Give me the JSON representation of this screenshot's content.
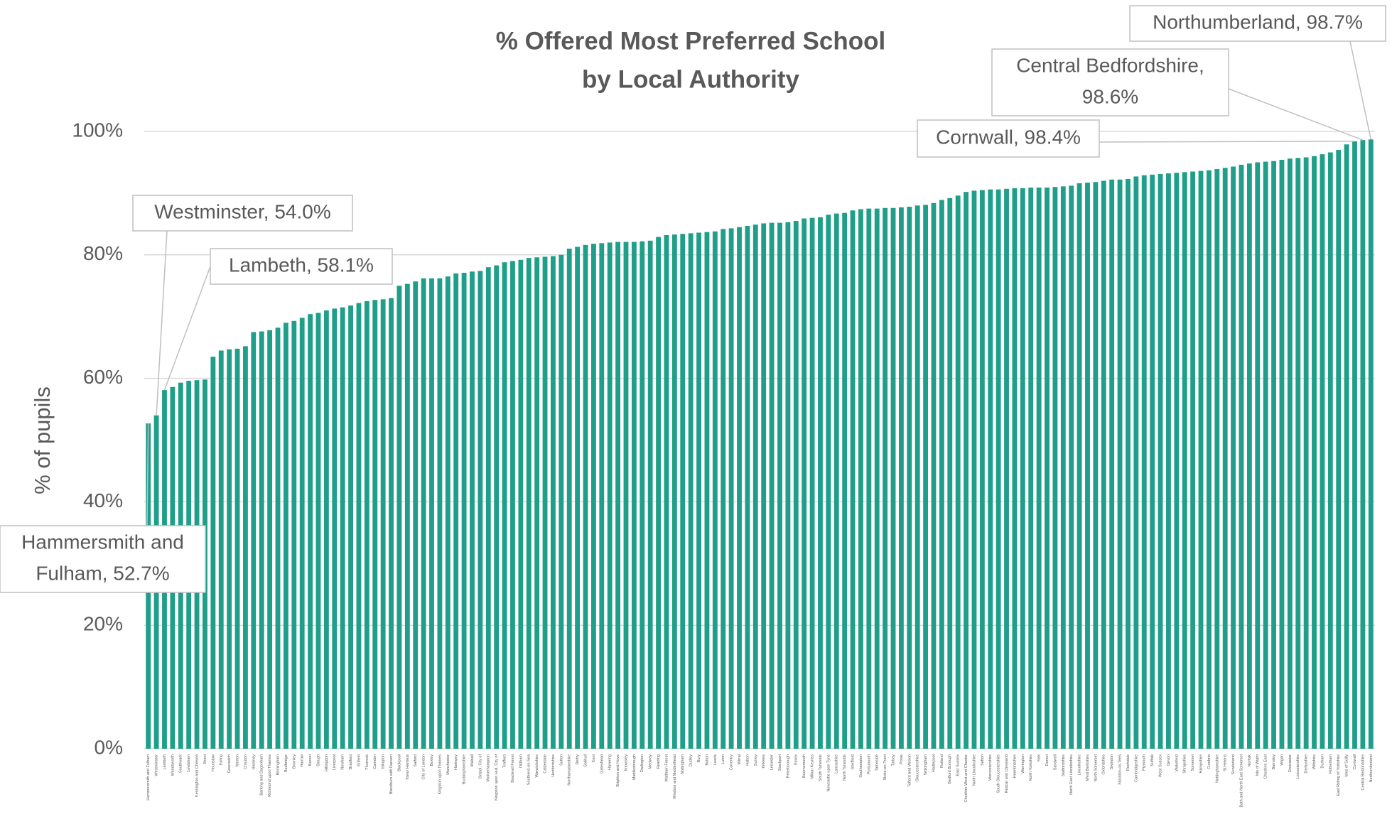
{
  "chart_data": {
    "type": "bar",
    "title": [
      "% Offered Most Preferred School",
      "by Local Authority"
    ],
    "y_label": "% of pupils",
    "color": "#1f9e89",
    "grid": true,
    "ylim": [
      0,
      100
    ],
    "yticks": [
      {
        "value": 0,
        "label": "0%"
      },
      {
        "value": 20,
        "label": "20%"
      },
      {
        "value": 40,
        "label": "40%"
      },
      {
        "value": 60,
        "label": "60%"
      },
      {
        "value": 80,
        "label": "80%"
      },
      {
        "value": 100,
        "label": "100%"
      }
    ],
    "categories": [
      "Hammersmith and Fulham",
      "Westminster",
      "Lambeth",
      "Wandsworth",
      "Southwark",
      "Lewisham",
      "Kensington and Chelsea",
      "Brent",
      "Hounslow",
      "Ealing",
      "Greenwich",
      "Merton",
      "Croydon",
      "Hackney",
      "Barking and Dagenham",
      "Richmond upon Thames",
      "Birmingham",
      "Redbridge",
      "Bromley",
      "Harrow",
      "Barnet",
      "Slough",
      "Hillingdon",
      "Liverpool",
      "Newham",
      "Bradford",
      "Enfield",
      "Thurrock",
      "Camden",
      "Islington",
      "Blackburn with Darwen",
      "Blackpool",
      "Tower Hamlets",
      "Salford",
      "City of London",
      "Bexley",
      "Kingston upon Thames",
      "Manchester",
      "Haringey",
      "Buckinghamshire",
      "Walsall",
      "Bristol, City of",
      "Wolverhampton",
      "Kingston upon Hull, City of",
      "Trafford",
      "Bracknell Forest",
      "Oldham",
      "Southend-on-Sea",
      "Warwickshire",
      "Calderdale",
      "Hertfordshire",
      "Sutton",
      "Northamptonshire",
      "Derby",
      "Solihull",
      "Kent",
      "Gateshead",
      "Havering",
      "Brighton and Hove",
      "Knowsley",
      "Middlesbrough",
      "Darlington",
      "Medway",
      "Reading",
      "Waltham Forest",
      "Windsor and Maidenhead",
      "Nottingham",
      "Dudley",
      "Bury",
      "Bolton",
      "Leeds",
      "Luton",
      "Coventry",
      "Wirral",
      "Halton",
      "Surrey",
      "Kirklees",
      "Leicester",
      "Stockport",
      "Peterborough",
      "Essex",
      "Bournemouth",
      "Milton Keynes",
      "South Tyneside",
      "Newcastle upon Tyne",
      "Lancashire",
      "North Tyneside",
      "Sheffield",
      "Southampton",
      "Portsmouth",
      "Tameside",
      "Stoke-on-Trent",
      "Torbay",
      "Poole",
      "Telford and Wrekin",
      "Gloucestershire",
      "Wokingham",
      "Hartlepool",
      "Rutland",
      "Bedford Borough",
      "East Sussex",
      "Cheshire West and Chester",
      "North Lincolnshire",
      "Sefton",
      "Worcestershire",
      "South Gloucestershire",
      "Redcar and Cleveland",
      "Herefordshire",
      "Warrington",
      "North Yorkshire",
      "York",
      "Dorset",
      "Sandwell",
      "Staffordshire",
      "North East Lincolnshire",
      "Lincolnshire",
      "West Berkshire",
      "North Somerset",
      "Oxfordshire",
      "Swindon",
      "Stockton-on-Tees",
      "Rochdale",
      "Cambridgeshire",
      "Plymouth",
      "Suffolk",
      "West Sussex",
      "Devon",
      "Wakefield",
      "Shropshire",
      "Somerset",
      "Hampshire",
      "Cumbria",
      "Nottinghamshire",
      "St Helens",
      "Sunderland",
      "Bath and North East Somerset",
      "Norfolk",
      "Isle of Wight",
      "Cheshire East",
      "Barnsley",
      "Wigan",
      "Doncaster",
      "Leicestershire",
      "Derbyshire",
      "Wiltshire",
      "Durham",
      "Rotherham",
      "East Riding of Yorkshire",
      "Isles of Scilly",
      "Cornwall",
      "Central Bedfordshire",
      "Northumberland"
    ],
    "values": [
      52.7,
      54.0,
      58.1,
      58.6,
      59.3,
      59.6,
      59.7,
      59.8,
      63.5,
      64.5,
      64.7,
      64.8,
      65.2,
      67.5,
      67.6,
      67.8,
      68.2,
      69.0,
      69.3,
      69.8,
      70.4,
      70.6,
      71.0,
      71.3,
      71.5,
      71.8,
      72.2,
      72.5,
      72.7,
      72.8,
      73.0,
      75.0,
      75.3,
      75.7,
      76.2,
      76.2,
      76.2,
      76.5,
      77.0,
      77.1,
      77.3,
      77.4,
      78.0,
      78.3,
      78.8,
      79.0,
      79.2,
      79.5,
      79.6,
      79.7,
      79.8,
      80.0,
      81.0,
      81.3,
      81.6,
      81.8,
      81.9,
      82.0,
      82.1,
      82.1,
      82.1,
      82.2,
      82.3,
      82.9,
      83.2,
      83.3,
      83.4,
      83.5,
      83.6,
      83.7,
      83.8,
      84.2,
      84.3,
      84.5,
      84.7,
      84.9,
      85.1,
      85.2,
      85.2,
      85.3,
      85.5,
      85.9,
      86.0,
      86.1,
      86.5,
      86.7,
      86.8,
      87.2,
      87.4,
      87.5,
      87.5,
      87.6,
      87.6,
      87.7,
      87.8,
      88.0,
      88.1,
      88.4,
      88.9,
      89.2,
      89.6,
      90.2,
      90.4,
      90.5,
      90.6,
      90.6,
      90.7,
      90.8,
      90.8,
      90.9,
      90.9,
      90.9,
      91.0,
      91.1,
      91.2,
      91.6,
      91.7,
      91.8,
      92.0,
      92.2,
      92.2,
      92.3,
      92.7,
      92.9,
      93.0,
      93.1,
      93.2,
      93.3,
      93.4,
      93.5,
      93.6,
      93.7,
      93.9,
      94.1,
      94.3,
      94.6,
      94.8,
      95.0,
      95.1,
      95.2,
      95.4,
      95.6,
      95.7,
      95.8,
      96.0,
      96.3,
      96.6,
      97.0,
      97.9,
      98.4,
      98.6,
      98.7
    ],
    "annotations": [
      {
        "lines": [
          "Northumberland, 98.7%"
        ]
      },
      {
        "lines": [
          "Central Bedfordshire,",
          "98.6%"
        ]
      },
      {
        "lines": [
          "Cornwall, 98.4%"
        ]
      },
      {
        "lines": [
          "Westminster, 54.0%"
        ]
      },
      {
        "lines": [
          "Lambeth, 58.1%"
        ]
      },
      {
        "lines": [
          "Hammersmith and",
          "Fulham, 52.7%"
        ]
      }
    ]
  }
}
